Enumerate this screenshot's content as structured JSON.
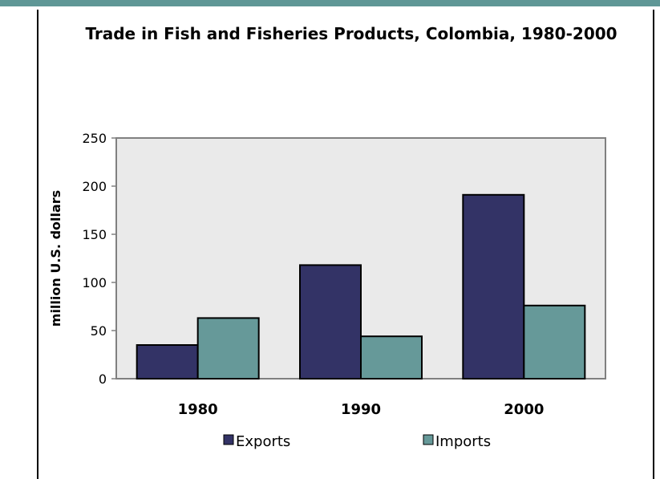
{
  "chart_data": {
    "type": "bar",
    "title": "Trade in Fish and Fisheries Products, Colombia, 1980-2000",
    "xlabel": "",
    "ylabel": "million U.S. dollars",
    "categories": [
      "1980",
      "1990",
      "2000"
    ],
    "series": [
      {
        "name": "Exports",
        "values": [
          35,
          118,
          191
        ]
      },
      {
        "name": "Imports",
        "values": [
          63,
          44,
          76
        ]
      }
    ],
    "ylim": [
      0,
      250
    ],
    "yticks": [
      0,
      50,
      100,
      150,
      200,
      250
    ],
    "grid": false,
    "legend": "bottom",
    "colors": {
      "Exports": "#333366",
      "Imports": "#669999",
      "plot_background": "#eaeaea",
      "frame_band": "#5f9796"
    }
  }
}
